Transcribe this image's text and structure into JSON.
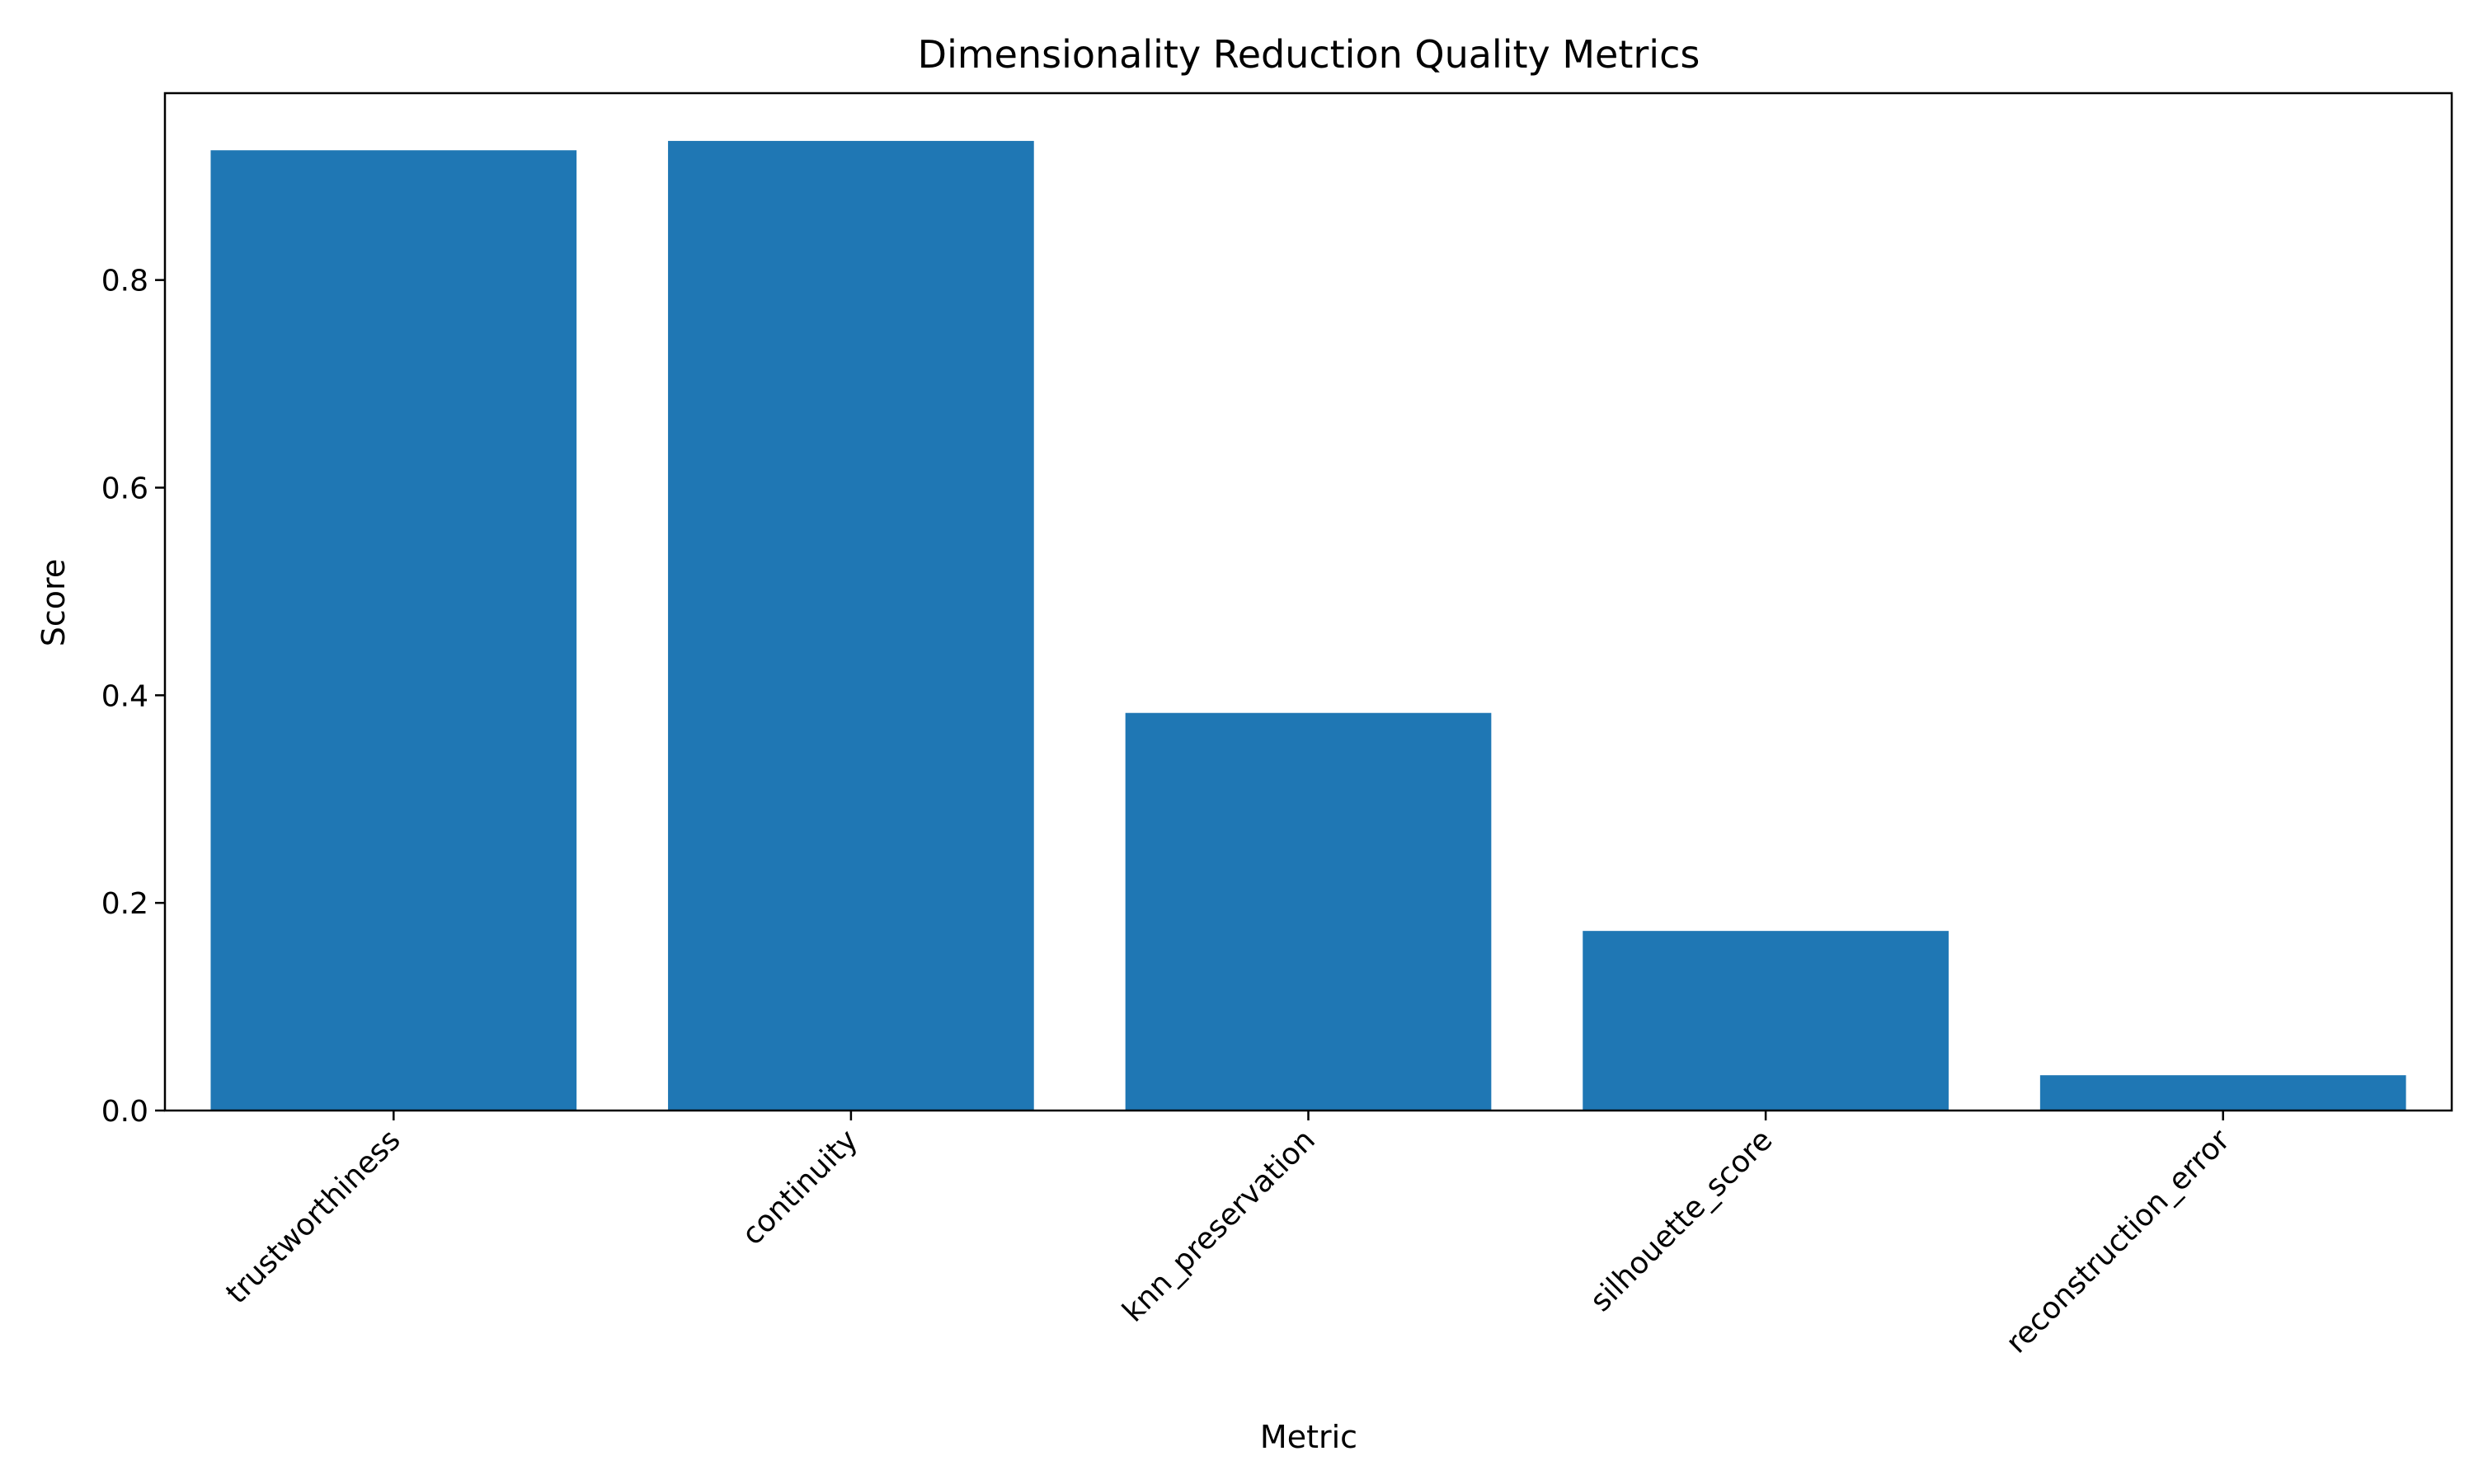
{
  "colors": {
    "bar": "#1f77b4",
    "axis": "#000000",
    "background": "#ffffff"
  },
  "chart_data": {
    "type": "bar",
    "title": "Dimensionality Reduction Quality Metrics",
    "xlabel": "Metric",
    "ylabel": "Score",
    "categories": [
      "trustworthiness",
      "continuity",
      "knn_preservation",
      "silhouette_score",
      "reconstruction_error"
    ],
    "values": [
      0.925,
      0.934,
      0.383,
      0.173,
      0.034
    ],
    "ylim": [
      0,
      0.98
    ],
    "yticks": [
      0.0,
      0.2,
      0.4,
      0.6,
      0.8
    ],
    "ytick_labels": [
      "0.0",
      "0.2",
      "0.4",
      "0.6",
      "0.8"
    ],
    "grid": false,
    "legend": "none"
  }
}
